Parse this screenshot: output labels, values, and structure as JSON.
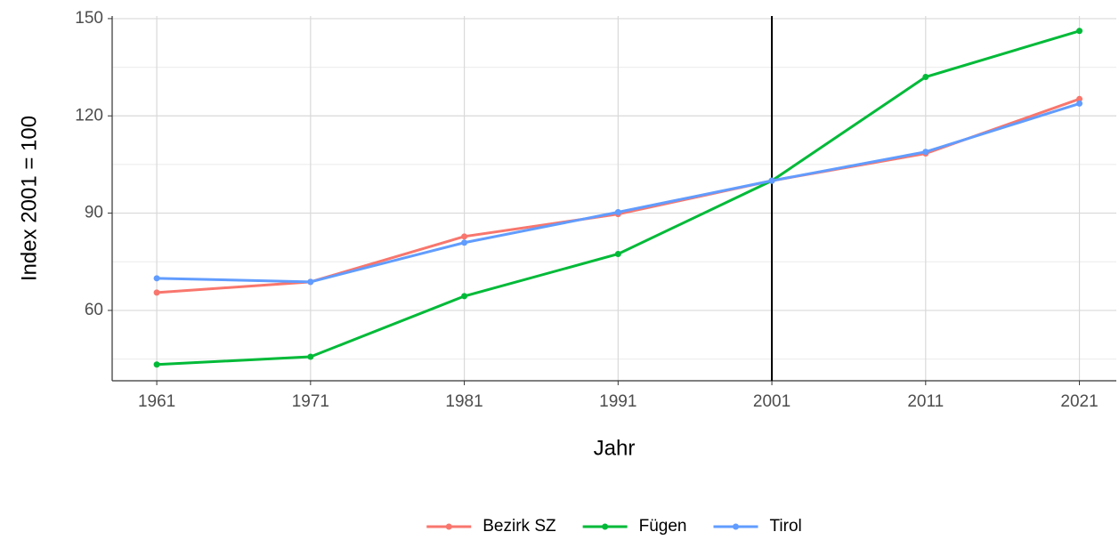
{
  "chart_data": {
    "type": "line",
    "xlabel": "Jahr",
    "ylabel": "Index 2001 = 100",
    "x": [
      1961,
      1971,
      1981,
      1991,
      2001,
      2011,
      2021
    ],
    "series": [
      {
        "name": "Bezirk SZ",
        "color": "#F8766D",
        "values": [
          65.5,
          68.8,
          82.8,
          89.7,
          100,
          108.4,
          125.2
        ]
      },
      {
        "name": "Fügen",
        "color": "#00BA38",
        "values": [
          43.3,
          45.7,
          64.4,
          77.4,
          100,
          132,
          146.2
        ]
      },
      {
        "name": "Tirol",
        "color": "#619CFF",
        "values": [
          69.9,
          68.8,
          80.9,
          90.3,
          100,
          108.9,
          123.8
        ]
      }
    ],
    "xlim": [
      1958.1,
      2023.4
    ],
    "ylim": [
      38.3,
      150.8
    ],
    "xticks": [
      1961,
      1971,
      1981,
      1991,
      2001,
      2011,
      2021
    ],
    "yticks": [
      60,
      90,
      120,
      150
    ],
    "vline": 2001,
    "grid": true,
    "legend": "bottom"
  }
}
